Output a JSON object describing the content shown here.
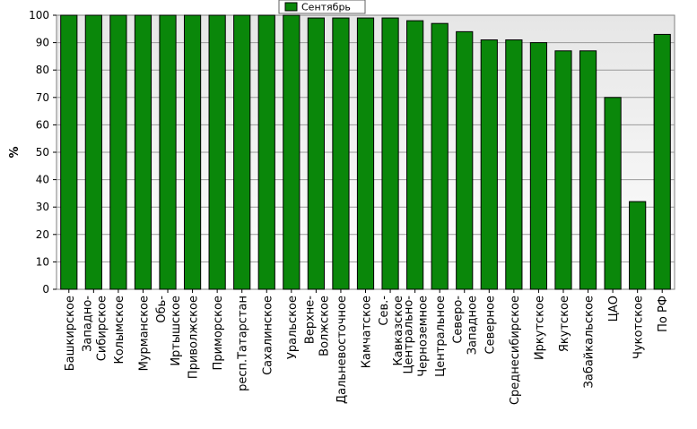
{
  "chart_data": {
    "type": "bar",
    "title": "",
    "xlabel": "",
    "ylabel": "%",
    "ylim": [
      0,
      100
    ],
    "yticks": [
      "0",
      "10",
      "20",
      "30",
      "40",
      "50",
      "60",
      "70",
      "80",
      "90",
      "100"
    ],
    "grid": true,
    "legend_position": "top",
    "categories": [
      "Башкирское",
      "Западно-Сибирское",
      "Колымское",
      "Мурманское",
      "Обь-Иртышское",
      "Приволжское",
      "Приморское",
      "респ.Татарстан",
      "Сахалинское",
      "Уральское",
      "Верхне-Волжское",
      "Дальневосточное",
      "Камчатское",
      "Сев.-Кавказское",
      "Центрально-Черноземное",
      "Центральное",
      "Северо-Западное",
      "Северное",
      "Среднесибирское",
      "Иркутское",
      "Якутское",
      "Забайкальское",
      "ЦАО",
      "Чукотское",
      "По РФ"
    ],
    "category_lines": [
      [
        "Башкирское"
      ],
      [
        "Западно-",
        "Сибирское"
      ],
      [
        "Колымское"
      ],
      [
        "Мурманское"
      ],
      [
        "Обь-",
        "Иртышское"
      ],
      [
        "Приволжское"
      ],
      [
        "Приморское"
      ],
      [
        "респ.Татарстан"
      ],
      [
        "Сахалинское"
      ],
      [
        "Уральское"
      ],
      [
        "Верхне-",
        "Волжское"
      ],
      [
        "Дальневосточное"
      ],
      [
        "Камчатское"
      ],
      [
        "Сев.-",
        "Кавказское"
      ],
      [
        "Центрально-",
        "Черноземное"
      ],
      [
        "Центральное"
      ],
      [
        "Северо-",
        "Западное"
      ],
      [
        "Северное"
      ],
      [
        "Среднесибирское"
      ],
      [
        "Иркутское"
      ],
      [
        "Якутское"
      ],
      [
        "Забайкальское"
      ],
      [
        "ЦАО"
      ],
      [
        "Чукотское"
      ],
      [
        "По РФ"
      ]
    ],
    "series": [
      {
        "name": "Сентябрь",
        "color": "#0a870a",
        "values": [
          100,
          100,
          100,
          100,
          100,
          100,
          100,
          100,
          100,
          100,
          99,
          99,
          99,
          99,
          98,
          97,
          94,
          91,
          91,
          90,
          87,
          87,
          70,
          32,
          93
        ]
      }
    ]
  },
  "colors": {
    "bar": "#0a870a",
    "bar_edge": "#000000",
    "grid": "#9a9a9a",
    "plot_bg_top": "#f6f6f6",
    "plot_bg_bottom": "#ffffff"
  }
}
